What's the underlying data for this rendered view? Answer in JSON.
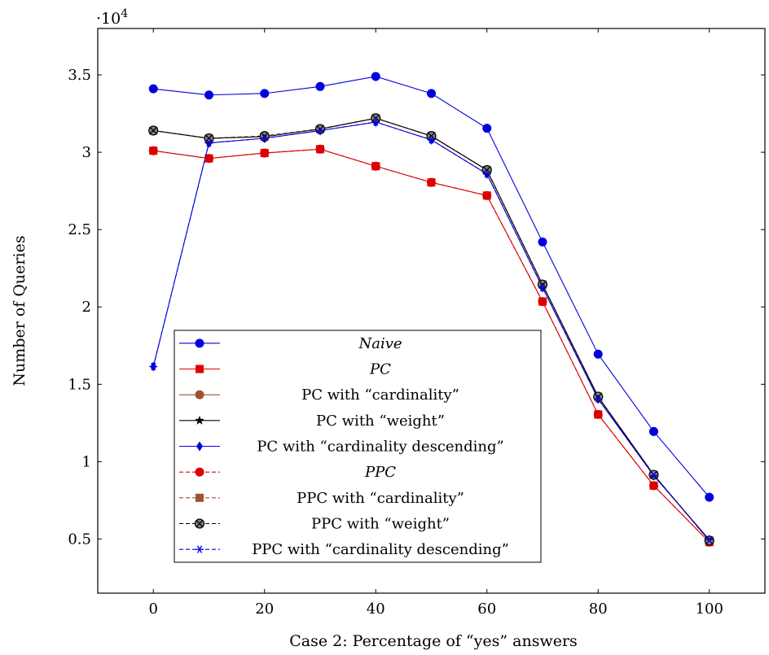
{
  "chart_data": {
    "type": "line",
    "title": "",
    "xlabel": "Case 2: Percentage of “yes” answers",
    "ylabel": "Number of Queries",
    "y_multiplier_base": "·10",
    "y_multiplier_exp": "4",
    "xlim": [
      -10,
      110
    ],
    "ylim": [
      1500,
      38000
    ],
    "x_ticks": [
      0,
      20,
      40,
      60,
      80,
      100
    ],
    "x_tick_labels": [
      "0",
      "20",
      "40",
      "60",
      "80",
      "100"
    ],
    "y_ticks": [
      5000,
      10000,
      15000,
      20000,
      25000,
      30000,
      35000
    ],
    "y_tick_labels": [
      "0.5",
      "1",
      "1.5",
      "2",
      "2.5",
      "3",
      "3.5"
    ],
    "grid": false,
    "legend_position": "lower-left",
    "x": [
      0,
      10,
      20,
      30,
      40,
      50,
      60,
      70,
      80,
      90,
      100
    ],
    "series": [
      {
        "name": "Naive",
        "italic": true,
        "color": "#0000dd",
        "marker": "circle",
        "dashed": false,
        "values": [
          34100,
          33700,
          33800,
          34250,
          34900,
          33800,
          31550,
          24200,
          16950,
          11950,
          7700
        ]
      },
      {
        "name": "PC",
        "italic": true,
        "color": "#dd0000",
        "marker": "square",
        "dashed": false,
        "values": [
          30100,
          29600,
          29950,
          30200,
          29100,
          28050,
          27200,
          20350,
          13050,
          8450,
          4800
        ]
      },
      {
        "name": "PC with “cardinality”",
        "italic": false,
        "color": "#a0522d",
        "marker": "circle",
        "dashed": false,
        "values": [
          31400,
          30900,
          31000,
          31500,
          32200,
          31050,
          28850,
          21450,
          14200,
          9150,
          4900
        ]
      },
      {
        "name": "PC with “weight”",
        "italic": false,
        "color": "#000000",
        "marker": "star",
        "dashed": false,
        "values": [
          31400,
          30900,
          31000,
          31500,
          32200,
          31050,
          28850,
          21450,
          14200,
          9150,
          4900
        ]
      },
      {
        "name": "PC with “cardinality descending”",
        "italic": false,
        "color": "#0000dd",
        "marker": "diamond",
        "dashed": false,
        "values": [
          16150,
          30600,
          30900,
          31400,
          31950,
          30800,
          28600,
          21250,
          14050,
          9100,
          4950
        ]
      },
      {
        "name": "PPC",
        "italic": true,
        "color": "#dd0000",
        "marker": "circle",
        "dashed": true,
        "values": [
          30100,
          29600,
          29950,
          30200,
          29100,
          28050,
          27200,
          20350,
          13050,
          8450,
          4800
        ]
      },
      {
        "name": "PPC with “cardinality”",
        "italic": false,
        "color": "#a0522d",
        "marker": "square",
        "dashed": true,
        "values": [
          31400,
          30900,
          31000,
          31500,
          32200,
          31050,
          28850,
          21450,
          14200,
          9150,
          4900
        ]
      },
      {
        "name": "PPC with “weight”",
        "italic": false,
        "color": "#000000",
        "marker": "otimes",
        "dashed": true,
        "values": [
          31400,
          30900,
          31050,
          31500,
          32200,
          31050,
          28850,
          21450,
          14200,
          9150,
          4900
        ]
      },
      {
        "name": "PPC with “cardinality descending”",
        "italic": false,
        "color": "#0000dd",
        "marker": "asterisk",
        "dashed": true,
        "values": [
          16150,
          30600,
          30900,
          31400,
          31950,
          30800,
          28600,
          21250,
          14050,
          9100,
          4950
        ]
      }
    ]
  }
}
